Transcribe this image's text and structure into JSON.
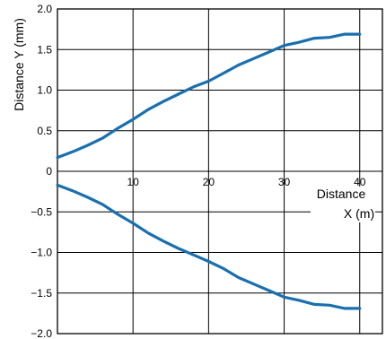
{
  "chart_data": {
    "type": "line",
    "title": "",
    "ylabel": "Distance Y (mm)",
    "xlabel_line1": "Distance",
    "xlabel_line2": "X (m)",
    "xlim": [
      0,
      43
    ],
    "ylim": [
      -2.0,
      2.0
    ],
    "x_ticks": [
      10,
      20,
      30,
      40
    ],
    "y_ticks": [
      2.0,
      1.5,
      1.0,
      0.5,
      0,
      -0.5,
      -1.0,
      -1.5,
      -2.0
    ],
    "y_tick_labels": [
      "2.0",
      "1.5",
      "1.0",
      "0.5",
      "0",
      "−0.5",
      "−1.0",
      "−1.5",
      "−2.0"
    ],
    "grid": true,
    "series_color": "#1a6faf",
    "series": [
      {
        "x": [
          0,
          2,
          4,
          6,
          8,
          10,
          12,
          14,
          16,
          18,
          20,
          22,
          24,
          26,
          28,
          30,
          32,
          34,
          36,
          38,
          40
        ],
        "values": [
          0.17,
          0.24,
          0.32,
          0.41,
          0.53,
          0.64,
          0.76,
          0.86,
          0.95,
          1.04,
          1.11,
          1.21,
          1.31,
          1.39,
          1.47,
          1.55,
          1.59,
          1.64,
          1.65,
          1.69,
          1.69
        ]
      },
      {
        "x": [
          0,
          2,
          4,
          6,
          8,
          10,
          12,
          14,
          16,
          18,
          20,
          22,
          24,
          26,
          28,
          30,
          32,
          34,
          36,
          38,
          40
        ],
        "values": [
          -0.17,
          -0.24,
          -0.32,
          -0.41,
          -0.53,
          -0.64,
          -0.76,
          -0.86,
          -0.95,
          -1.03,
          -1.11,
          -1.2,
          -1.31,
          -1.39,
          -1.47,
          -1.55,
          -1.59,
          -1.64,
          -1.65,
          -1.69,
          -1.69
        ]
      }
    ]
  }
}
